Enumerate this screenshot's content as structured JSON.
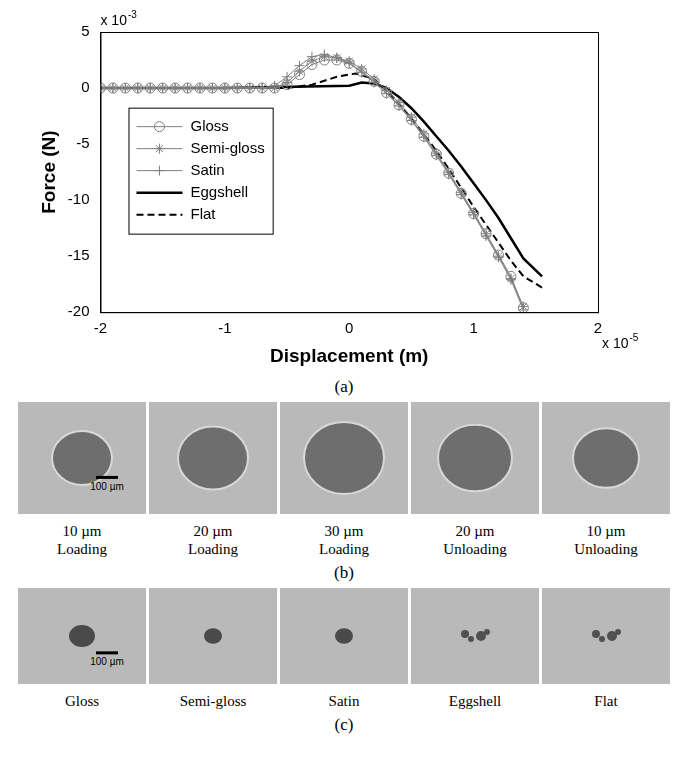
{
  "chart_data": {
    "type": "line",
    "x_label": "Displacement (m)",
    "y_label": "Force (N)",
    "annotations": [
      {
        "axis": "y",
        "text": "x 10",
        "superscript": "-3"
      },
      {
        "axis": "x",
        "text": "x 10",
        "superscript": "-5"
      }
    ],
    "xlim": [
      -2,
      2
    ],
    "xticks": [
      -2,
      -1,
      0,
      1,
      2
    ],
    "ylim": [
      -20,
      5
    ],
    "yticks": [
      -20,
      -15,
      -10,
      -5,
      0,
      5
    ],
    "grid": false,
    "legend": "left",
    "series": [
      {
        "name": "Gloss",
        "color": "#7f7f7f",
        "marker": "circle",
        "line_style": "solid",
        "x": [
          -2,
          -1.9,
          -1.8,
          -1.7,
          -1.6,
          -1.5,
          -1.4,
          -1.3,
          -1.2,
          -1.1,
          -1,
          -0.9,
          -0.8,
          -0.7,
          -0.6,
          -0.5,
          -0.4,
          -0.3,
          -0.2,
          -0.1,
          0,
          0.1,
          0.2,
          0.3,
          0.4,
          0.5,
          0.6,
          0.7,
          0.8,
          0.9,
          1,
          1.1,
          1.2,
          1.3,
          1.4
        ],
        "values": [
          0,
          0,
          0,
          0,
          0,
          0,
          0,
          0,
          0,
          0,
          0,
          0,
          0,
          0,
          0,
          0.3,
          1.2,
          2.1,
          2.5,
          2.5,
          2.2,
          1.5,
          0.6,
          -0.4,
          -1.5,
          -2.8,
          -4.3,
          -5.9,
          -7.6,
          -9.4,
          -11.2,
          -13,
          -14.9,
          -16.8,
          -19.6
        ]
      },
      {
        "name": "Semi-gloss",
        "color": "#7f7f7f",
        "marker": "star",
        "line_style": "solid",
        "x": [
          -2,
          -1.9,
          -1.8,
          -1.7,
          -1.6,
          -1.5,
          -1.4,
          -1.3,
          -1.2,
          -1.1,
          -1,
          -0.9,
          -0.8,
          -0.7,
          -0.6,
          -0.5,
          -0.4,
          -0.3,
          -0.2,
          -0.1,
          0,
          0.1,
          0.2,
          0.3,
          0.4,
          0.5,
          0.6,
          0.7,
          0.8,
          0.9,
          1,
          1.1,
          1.2,
          1.3,
          1.4
        ],
        "values": [
          0,
          0,
          0,
          0,
          0,
          0,
          0,
          0,
          0,
          0,
          0,
          0,
          0,
          0,
          0,
          0.5,
          1.5,
          2.4,
          2.8,
          2.7,
          2.4,
          1.7,
          0.8,
          -0.2,
          -1.3,
          -2.6,
          -4.1,
          -5.8,
          -7.5,
          -9.3,
          -11.1,
          -13,
          -15,
          -17,
          -19.5
        ]
      },
      {
        "name": "Satin",
        "color": "#7f7f7f",
        "marker": "plus",
        "line_style": "solid",
        "x": [
          -2,
          -1.9,
          -1.8,
          -1.7,
          -1.6,
          -1.5,
          -1.4,
          -1.3,
          -1.2,
          -1.1,
          -1,
          -0.9,
          -0.8,
          -0.7,
          -0.6,
          -0.5,
          -0.4,
          -0.3,
          -0.2,
          -0.1,
          0,
          0.1,
          0.2,
          0.3,
          0.4,
          0.5,
          0.6,
          0.7,
          0.8,
          0.9,
          1,
          1.1,
          1.2,
          1.3,
          1.4
        ],
        "values": [
          0,
          0,
          0,
          0,
          0,
          0,
          0,
          0,
          0,
          0,
          0,
          0,
          0,
          0,
          0.2,
          1,
          2,
          2.8,
          3,
          2.7,
          2.2,
          1.4,
          0.5,
          -0.5,
          -1.6,
          -2.9,
          -4.4,
          -6,
          -7.7,
          -9.5,
          -11.3,
          -13.2,
          -15.1,
          -17.1,
          -19.8
        ]
      },
      {
        "name": "Eggshell",
        "color": "#000000",
        "marker": "none",
        "line_style": "solid",
        "x": [
          -2,
          -1,
          0,
          0.1,
          0.2,
          0.3,
          0.4,
          0.5,
          0.6,
          0.7,
          0.8,
          0.9,
          1,
          1.1,
          1.2,
          1.3,
          1.4,
          1.55
        ],
        "values": [
          0,
          0,
          0.2,
          0.5,
          0.4,
          0,
          -0.8,
          -1.8,
          -3,
          -4.3,
          -5.6,
          -7,
          -8.5,
          -10,
          -11.6,
          -13.4,
          -15.2,
          -16.8
        ]
      },
      {
        "name": "Flat",
        "color": "#000000",
        "marker": "none",
        "line_style": "dashed",
        "x": [
          -2,
          -1,
          -0.5,
          -0.3,
          -0.1,
          0.05,
          0.2,
          0.3,
          0.4,
          0.5,
          0.6,
          0.7,
          0.8,
          0.9,
          1,
          1.1,
          1.2,
          1.3,
          1.4,
          1.55
        ],
        "values": [
          0,
          0,
          0,
          0.3,
          1,
          1.3,
          0.8,
          -0.2,
          -1.4,
          -2.7,
          -4.1,
          -5.6,
          -7.2,
          -8.9,
          -10.6,
          -12.2,
          -13.8,
          -15.4,
          -16.8,
          -17.8
        ]
      }
    ]
  },
  "chart_caption": "(a)",
  "photo_panels": [
    {
      "caption": "(b)",
      "scale_bar": "100 µm",
      "images": [
        [
          "10 µm",
          "Loading"
        ],
        [
          "20 µm",
          "Loading"
        ],
        [
          "30 µm",
          "Loading"
        ],
        [
          "20 µm",
          "Unloading"
        ],
        [
          "10 µm",
          "Unloading"
        ]
      ]
    },
    {
      "caption": "(c)",
      "scale_bar": "100 µm",
      "images": [
        [
          "Gloss"
        ],
        [
          "Semi-gloss"
        ],
        [
          "Satin"
        ],
        [
          "Eggshell"
        ],
        [
          "Flat"
        ]
      ]
    }
  ]
}
